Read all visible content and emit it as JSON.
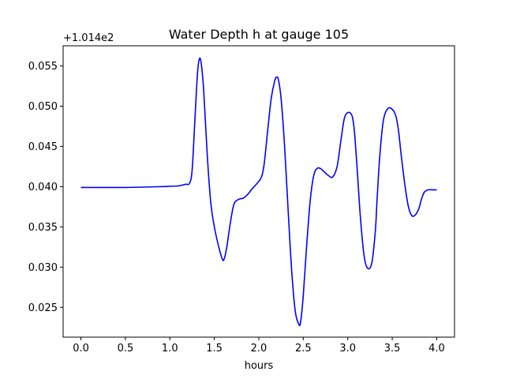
{
  "chart_data": {
    "type": "line",
    "title": "Water Depth h at gauge 105",
    "xlabel": "hours",
    "ylabel": "",
    "y_offset_label": "+1.014e2",
    "xlim": [
      -0.2,
      4.2
    ],
    "ylim": [
      0.0213,
      0.0575
    ],
    "xticks": [
      0.0,
      0.5,
      1.0,
      1.5,
      2.0,
      2.5,
      3.0,
      3.5,
      4.0
    ],
    "xtick_labels": [
      "0.0",
      "0.5",
      "1.0",
      "1.5",
      "2.0",
      "2.5",
      "3.0",
      "3.5",
      "4.0"
    ],
    "yticks": [
      0.025,
      0.03,
      0.035,
      0.04,
      0.045,
      0.05,
      0.055
    ],
    "ytick_labels": [
      "0.025",
      "0.030",
      "0.035",
      "0.040",
      "0.045",
      "0.050",
      "0.055"
    ],
    "grid": false,
    "series": [
      {
        "color": "#0000ff",
        "x": [
          0.0,
          0.5,
          0.9,
          1.0,
          1.1,
          1.18,
          1.22,
          1.25,
          1.28,
          1.31,
          1.33,
          1.35,
          1.38,
          1.42,
          1.46,
          1.5,
          1.55,
          1.59,
          1.61,
          1.64,
          1.68,
          1.72,
          1.77,
          1.83,
          1.88,
          1.93,
          1.98,
          2.03,
          2.06,
          2.1,
          2.14,
          2.18,
          2.2,
          2.22,
          2.25,
          2.29,
          2.33,
          2.37,
          2.41,
          2.45,
          2.47,
          2.5,
          2.54,
          2.58,
          2.62,
          2.66,
          2.7,
          2.73,
          2.78,
          2.83,
          2.88,
          2.92,
          2.96,
          3.0,
          3.04,
          3.06,
          3.08,
          3.11,
          3.14,
          3.18,
          3.22,
          3.27,
          3.31,
          3.33,
          3.36,
          3.4,
          3.45,
          3.5,
          3.54,
          3.57,
          3.6,
          3.64,
          3.68,
          3.72,
          3.76,
          3.8,
          3.83,
          3.86,
          3.9,
          3.95,
          4.0
        ],
        "y": [
          0.0399,
          0.0399,
          0.04,
          0.04005,
          0.0401,
          0.0403,
          0.0404,
          0.042,
          0.048,
          0.054,
          0.0558,
          0.0555,
          0.052,
          0.044,
          0.038,
          0.035,
          0.0325,
          0.031,
          0.031,
          0.0325,
          0.0355,
          0.0378,
          0.0384,
          0.0386,
          0.0391,
          0.0398,
          0.0404,
          0.0412,
          0.0428,
          0.047,
          0.051,
          0.0532,
          0.0536,
          0.0533,
          0.051,
          0.045,
          0.037,
          0.0295,
          0.0245,
          0.0229,
          0.0232,
          0.0265,
          0.033,
          0.0385,
          0.0415,
          0.0423,
          0.0422,
          0.0419,
          0.0414,
          0.0412,
          0.0425,
          0.0455,
          0.0484,
          0.0492,
          0.049,
          0.0482,
          0.0462,
          0.0415,
          0.0365,
          0.0317,
          0.0299,
          0.0305,
          0.0345,
          0.0385,
          0.0438,
          0.0482,
          0.0497,
          0.0496,
          0.0488,
          0.047,
          0.044,
          0.0404,
          0.0376,
          0.0364,
          0.0365,
          0.0373,
          0.0385,
          0.0393,
          0.0396,
          0.0396,
          0.0396
        ]
      }
    ]
  }
}
